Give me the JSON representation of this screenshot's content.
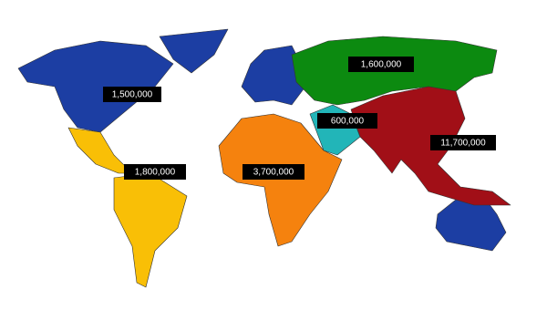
{
  "regions": [
    {
      "label": "1,500,000",
      "color": "#1c3ea3"
    },
    {
      "label": "1,800,000",
      "color": "#f9bf06"
    },
    {
      "label": "3,700,000",
      "color": "#f5820e"
    },
    {
      "label": "1,600,000",
      "color": "#0c8a10"
    },
    {
      "label": "600,000",
      "color": "#22b5b8"
    },
    {
      "label": "11,700,000",
      "color": "#a10f17"
    }
  ]
}
